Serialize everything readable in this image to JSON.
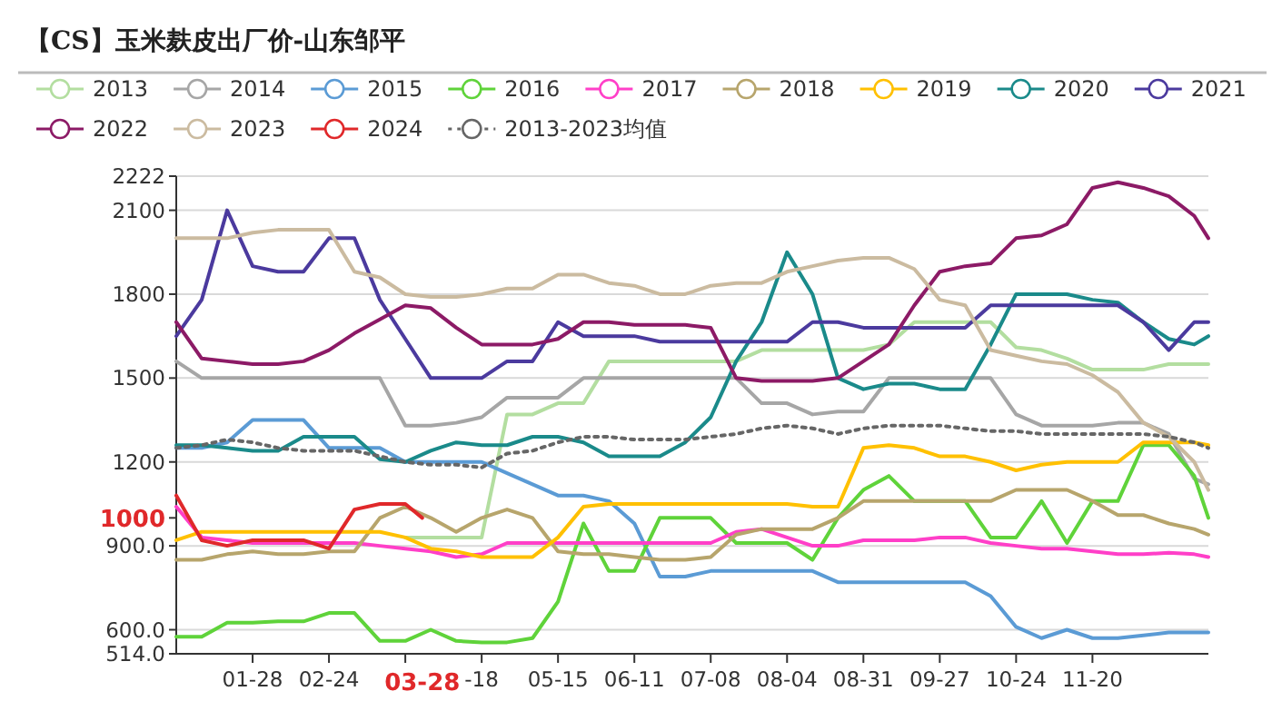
{
  "chart_data": {
    "type": "line",
    "title": "【CS】玉米麸皮出厂价-山东邹平",
    "legend": "top",
    "grid": "y",
    "xlim": [
      "--01-01",
      "--12-31"
    ],
    "ylim": [
      514,
      2222
    ],
    "yticks": [
      {
        "value": 514,
        "label": "514.0"
      },
      {
        "value": 600,
        "label": "600.0"
      },
      {
        "value": 900,
        "label": "900.0"
      },
      1000,
      1200,
      1500,
      1800,
      2100,
      2222
    ],
    "xticks": [
      {
        "value": "--01-28",
        "label": "01-28"
      },
      {
        "value": "--02-24",
        "label": "02-24"
      },
      {
        "value": "--03-22",
        "label": null
      },
      {
        "value": "--03-28",
        "label": "03-28"
      },
      {
        "value": "--04-18",
        "label": "-18"
      },
      {
        "value": "--05-15",
        "label": "05-15"
      },
      {
        "value": "--06-11",
        "label": "06-11"
      },
      {
        "value": "--07-08",
        "label": "07-08"
      },
      {
        "value": "--08-04",
        "label": "08-04"
      },
      {
        "value": "--08-31",
        "label": "08-31"
      },
      {
        "value": "--09-27",
        "label": "09-27"
      },
      {
        "value": "--10-24",
        "label": "10-24"
      },
      {
        "value": "--11-20",
        "label": "11-20"
      }
    ],
    "x": [
      "--01-01",
      "--01-10",
      "--01-19",
      "--01-28",
      "--02-06",
      "--02-15",
      "--02-24",
      "--03-04",
      "--03-13",
      "--03-22",
      "--03-31",
      "--04-09",
      "--04-18",
      "--04-27",
      "--05-06",
      "--05-15",
      "--05-24",
      "--06-02",
      "--06-11",
      "--06-20",
      "--06-29",
      "--07-08",
      "--07-17",
      "--07-26",
      "--08-04",
      "--08-13",
      "--08-22",
      "--08-31",
      "--09-09",
      "--09-18",
      "--09-27",
      "--10-06",
      "--10-15",
      "--10-24",
      "--11-02",
      "--11-11",
      "--11-20",
      "--11-29",
      "--12-08",
      "--12-17",
      "--12-26",
      "--12-31"
    ],
    "series": [
      {
        "name": "2013",
        "color": "#b3dea0",
        "values": [
          null,
          null,
          null,
          null,
          null,
          null,
          null,
          null,
          null,
          930,
          930,
          930,
          930,
          1370,
          1370,
          1410,
          1410,
          1560,
          1560,
          1560,
          1560,
          1560,
          1560,
          1600,
          1600,
          1600,
          1600,
          1600,
          1620,
          1700,
          1700,
          1700,
          1700,
          1610,
          1600,
          1570,
          1530,
          1530,
          1530,
          1550,
          1550,
          1550
        ]
      },
      {
        "name": "2014",
        "color": "#a6a6a6",
        "values": [
          1560,
          1500,
          1500,
          1500,
          1500,
          1500,
          1500,
          1500,
          1500,
          1330,
          1330,
          1340,
          1360,
          1430,
          1430,
          1430,
          1500,
          1500,
          1500,
          1500,
          1500,
          1500,
          1500,
          1410,
          1410,
          1370,
          1380,
          1380,
          1500,
          1500,
          1500,
          1500,
          1500,
          1370,
          1330,
          1330,
          1330,
          1340,
          1340,
          1300,
          1140,
          1120
        ]
      },
      {
        "name": "2015",
        "color": "#5b9bd5",
        "values": [
          1250,
          1250,
          1270,
          1350,
          1350,
          1350,
          1250,
          1250,
          1250,
          1200,
          1200,
          1200,
          1200,
          1160,
          1120,
          1080,
          1080,
          1060,
          980,
          790,
          790,
          810,
          810,
          810,
          810,
          810,
          770,
          770,
          770,
          770,
          770,
          770,
          720,
          610,
          570,
          600,
          570,
          570,
          580,
          590,
          590,
          590
        ]
      },
      {
        "name": "2016",
        "color": "#5fd33a",
        "values": [
          575,
          575,
          625,
          625,
          630,
          630,
          660,
          660,
          560,
          560,
          600,
          560,
          555,
          555,
          570,
          700,
          980,
          810,
          810,
          1000,
          1000,
          1000,
          910,
          910,
          910,
          850,
          1000,
          1100,
          1150,
          1060,
          1060,
          1060,
          930,
          930,
          1060,
          910,
          1060,
          1060,
          1260,
          1260,
          1150,
          1000
        ]
      },
      {
        "name": "2017",
        "color": "#ff3fc8",
        "values": [
          1040,
          930,
          920,
          910,
          910,
          910,
          910,
          910,
          900,
          890,
          880,
          860,
          870,
          910,
          910,
          910,
          910,
          910,
          910,
          910,
          910,
          910,
          950,
          960,
          930,
          900,
          900,
          920,
          920,
          920,
          930,
          930,
          910,
          900,
          890,
          890,
          880,
          870,
          870,
          875,
          870,
          860
        ]
      },
      {
        "name": "2018",
        "color": "#b7a56c",
        "values": [
          850,
          850,
          870,
          880,
          870,
          870,
          880,
          880,
          1000,
          1040,
          1000,
          950,
          1000,
          1030,
          1000,
          880,
          870,
          870,
          860,
          850,
          850,
          860,
          940,
          960,
          960,
          960,
          1000,
          1060,
          1060,
          1060,
          1060,
          1060,
          1060,
          1100,
          1100,
          1100,
          1060,
          1010,
          1010,
          980,
          960,
          940
        ]
      },
      {
        "name": "2019",
        "color": "#ffc000",
        "values": [
          920,
          950,
          950,
          950,
          950,
          950,
          950,
          950,
          950,
          930,
          890,
          880,
          860,
          860,
          860,
          930,
          1040,
          1050,
          1050,
          1050,
          1050,
          1050,
          1050,
          1050,
          1050,
          1040,
          1040,
          1250,
          1260,
          1250,
          1220,
          1220,
          1200,
          1170,
          1190,
          1200,
          1200,
          1200,
          1270,
          1270,
          1270,
          1260
        ]
      },
      {
        "name": "2020",
        "color": "#1a8a8a",
        "values": [
          1260,
          1260,
          1250,
          1240,
          1240,
          1290,
          1290,
          1290,
          1210,
          1200,
          1240,
          1270,
          1260,
          1260,
          1290,
          1290,
          1270,
          1220,
          1220,
          1220,
          1270,
          1360,
          1560,
          1700,
          1950,
          1800,
          1500,
          1460,
          1480,
          1480,
          1460,
          1460,
          1620,
          1800,
          1800,
          1800,
          1780,
          1770,
          1700,
          1640,
          1620,
          1650
        ]
      },
      {
        "name": "2021",
        "color": "#4b3a9e",
        "values": [
          1650,
          1780,
          2100,
          1900,
          1880,
          1880,
          2000,
          2000,
          1780,
          1640,
          1500,
          1500,
          1500,
          1560,
          1560,
          1700,
          1650,
          1650,
          1650,
          1630,
          1630,
          1630,
          1630,
          1630,
          1630,
          1700,
          1700,
          1680,
          1680,
          1680,
          1680,
          1680,
          1760,
          1760,
          1760,
          1760,
          1760,
          1760,
          1700,
          1600,
          1700,
          1700
        ]
      },
      {
        "name": "2022",
        "color": "#8c1a66",
        "values": [
          1700,
          1570,
          1560,
          1550,
          1550,
          1560,
          1600,
          1660,
          1710,
          1760,
          1750,
          1680,
          1620,
          1620,
          1620,
          1640,
          1700,
          1700,
          1690,
          1690,
          1690,
          1680,
          1500,
          1490,
          1490,
          1490,
          1500,
          1560,
          1620,
          1760,
          1880,
          1900,
          1910,
          2000,
          2010,
          2050,
          2180,
          2200,
          2180,
          2150,
          2080,
          2000
        ]
      },
      {
        "name": "2023",
        "color": "#cbbba0",
        "values": [
          2000,
          2000,
          2000,
          2020,
          2030,
          2030,
          2030,
          1880,
          1860,
          1800,
          1790,
          1790,
          1800,
          1820,
          1820,
          1870,
          1870,
          1840,
          1830,
          1800,
          1800,
          1830,
          1840,
          1840,
          1880,
          1900,
          1920,
          1930,
          1930,
          1890,
          1780,
          1760,
          1600,
          1580,
          1560,
          1550,
          1510,
          1450,
          1340,
          1290,
          1200,
          1100
        ]
      },
      {
        "name": "2024",
        "color": "#e0282a",
        "x": [
          "--01-01",
          "--01-10",
          "--01-19",
          "--01-28",
          "--02-06",
          "--02-15",
          "--02-24",
          "--03-04",
          "--03-13",
          "--03-22",
          "--03-28"
        ],
        "values": [
          1080,
          920,
          900,
          920,
          920,
          920,
          890,
          1030,
          1050,
          1050,
          1000
        ]
      },
      {
        "name": "2013-2023均值",
        "color": "#666666",
        "line_style": "dotted",
        "values": [
          1250,
          1260,
          1280,
          1270,
          1250,
          1240,
          1240,
          1240,
          1220,
          1200,
          1190,
          1190,
          1180,
          1230,
          1240,
          1270,
          1290,
          1290,
          1280,
          1280,
          1280,
          1290,
          1300,
          1320,
          1330,
          1320,
          1300,
          1320,
          1330,
          1330,
          1330,
          1320,
          1310,
          1310,
          1300,
          1300,
          1300,
          1300,
          1300,
          1290,
          1270,
          1250
        ]
      }
    ]
  }
}
